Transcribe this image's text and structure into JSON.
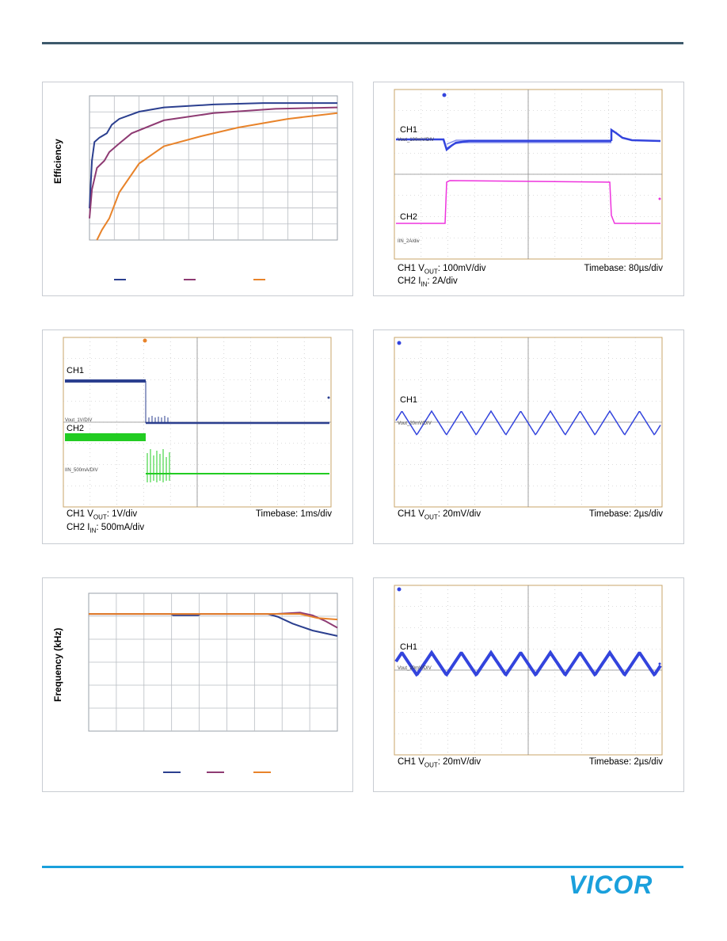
{
  "header": {
    "rule_color": "#3d5a6c"
  },
  "footer": {
    "rule_color": "#1aa0dc",
    "logo_text": "VICOR",
    "logo_color": "#1aa0dc"
  },
  "colors": {
    "navy": "#2b3f8f",
    "purple": "#8e3b73",
    "orange": "#e8832a",
    "scope_blue": "#3344dd",
    "scope_magenta": "#ee33dd",
    "scope_green": "#22cc22"
  },
  "efficiency_chart": {
    "ylabel": "Efficiency",
    "grid": true,
    "legend_swatches": [
      "#2b3f8f",
      "#8e3b73",
      "#e8832a"
    ],
    "chart_data": {
      "type": "line",
      "title": "",
      "xlabel": "",
      "ylabel": "Efficiency",
      "x_range": [
        0,
        1
      ],
      "y_range": [
        0,
        1
      ],
      "series": [
        {
          "color": "#2b3f8f",
          "points": [
            [
              0,
              0.22
            ],
            [
              0.01,
              0.55
            ],
            [
              0.02,
              0.68
            ],
            [
              0.04,
              0.71
            ],
            [
              0.07,
              0.74
            ],
            [
              0.09,
              0.8
            ],
            [
              0.12,
              0.84
            ],
            [
              0.2,
              0.89
            ],
            [
              0.3,
              0.92
            ],
            [
              0.5,
              0.94
            ],
            [
              0.7,
              0.95
            ],
            [
              1,
              0.95
            ]
          ]
        },
        {
          "color": "#8e3b73",
          "points": [
            [
              0,
              0.15
            ],
            [
              0.01,
              0.35
            ],
            [
              0.03,
              0.5
            ],
            [
              0.06,
              0.55
            ],
            [
              0.08,
              0.61
            ],
            [
              0.12,
              0.67
            ],
            [
              0.17,
              0.74
            ],
            [
              0.3,
              0.83
            ],
            [
              0.5,
              0.88
            ],
            [
              0.75,
              0.91
            ],
            [
              1,
              0.92
            ]
          ]
        },
        {
          "color": "#e8832a",
          "points": [
            [
              0.03,
              0.0
            ],
            [
              0.05,
              0.07
            ],
            [
              0.08,
              0.15
            ],
            [
              0.12,
              0.33
            ],
            [
              0.2,
              0.53
            ],
            [
              0.3,
              0.65
            ],
            [
              0.45,
              0.72
            ],
            [
              0.6,
              0.78
            ],
            [
              0.8,
              0.84
            ],
            [
              1,
              0.88
            ]
          ]
        }
      ]
    }
  },
  "frequency_chart": {
    "ylabel": "Frequency (kHz)",
    "grid": true,
    "legend_swatches": [
      "#2b3f8f",
      "#8e3b73",
      "#e8832a"
    ],
    "chart_data": {
      "type": "line",
      "title": "",
      "xlabel": "",
      "ylabel": "Frequency (kHz)",
      "x_range": [
        0,
        1
      ],
      "y_range": [
        0,
        1
      ],
      "series": [
        {
          "color": "#2b3f8f",
          "points": [
            [
              0,
              0.85
            ],
            [
              0.33,
              0.85
            ],
            [
              0.34,
              0.84
            ],
            [
              0.44,
              0.84
            ],
            [
              0.45,
              0.85
            ],
            [
              0.72,
              0.85
            ],
            [
              0.76,
              0.83
            ],
            [
              0.82,
              0.78
            ],
            [
              0.9,
              0.73
            ],
            [
              1,
              0.69
            ]
          ]
        },
        {
          "color": "#8e3b73",
          "points": [
            [
              0,
              0.85
            ],
            [
              0.75,
              0.85
            ],
            [
              0.85,
              0.86
            ],
            [
              0.9,
              0.84
            ],
            [
              0.95,
              0.8
            ],
            [
              1,
              0.75
            ]
          ]
        },
        {
          "color": "#e8832a",
          "points": [
            [
              0,
              0.85
            ],
            [
              0.85,
              0.85
            ],
            [
              0.92,
              0.82
            ],
            [
              1,
              0.81
            ]
          ]
        }
      ]
    }
  },
  "scope_transient": {
    "ch1_label": "CH1",
    "ch2_label": "CH2",
    "ch1_tiny": "Vout_100mV/DIV",
    "ch2_tiny": "IIN_2A/div",
    "caption_ch1_pre": "CH1 V",
    "caption_ch1_sub": "OUT",
    "caption_ch1_post": ": 100mV/div",
    "caption_ch2_pre": "CH2 I",
    "caption_ch2_sub": "IN",
    "caption_ch2_post": ": 2A/div",
    "timebase": "Timebase: 80µs/div"
  },
  "scope_startup": {
    "ch1_label": "CH1",
    "ch2_label": "CH2",
    "ch1_tiny": "Vout_1V/DIV",
    "ch2_tiny": "IIN_500mA/DIV",
    "caption_ch1_pre": "CH1 V",
    "caption_ch1_sub": "OUT",
    "caption_ch1_post": ": 1V/div",
    "caption_ch2_pre": "CH2 I",
    "caption_ch2_sub": "IN",
    "caption_ch2_post": ": 500mA/div",
    "timebase": "Timebase: 1ms/div"
  },
  "scope_ripple_a": {
    "ch1_label": "CH1",
    "ch1_tiny": "Vout_20mV/DIV",
    "caption_ch1_pre": "CH1 V",
    "caption_ch1_sub": "OUT",
    "caption_ch1_post": ": 20mV/div",
    "timebase": "Timebase: 2µs/div"
  },
  "scope_ripple_b": {
    "ch1_label": "CH1",
    "ch1_tiny": "Vout_20mV/DIV",
    "caption_ch1_pre": "CH1 V",
    "caption_ch1_sub": "OUT",
    "caption_ch1_post": ": 20mV/div",
    "timebase": "Timebase: 2µs/div"
  }
}
